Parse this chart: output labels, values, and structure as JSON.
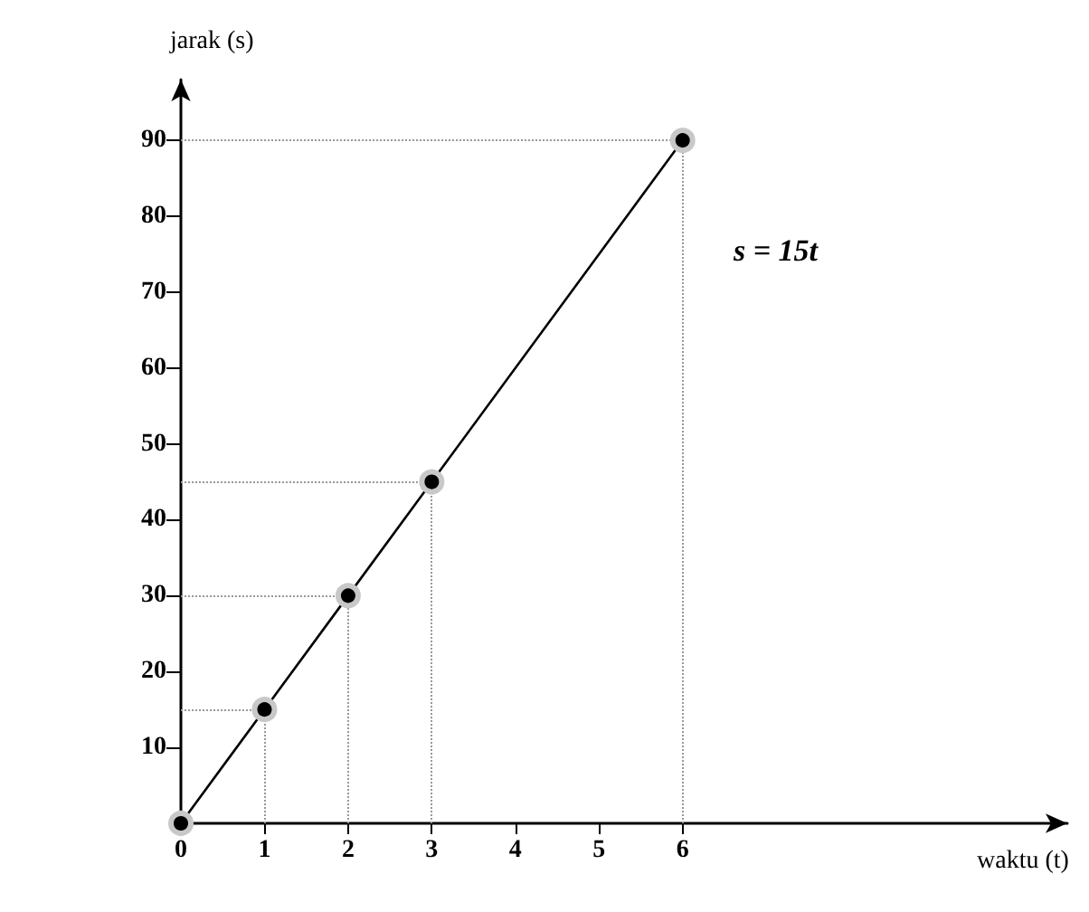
{
  "chart_data": {
    "type": "line",
    "xlabel": "waktu (t)",
    "ylabel": "jarak (s)",
    "x": [
      0,
      1,
      2,
      3,
      6
    ],
    "series": [
      {
        "color": "#000000",
        "values": [
          0,
          15,
          30,
          45,
          90
        ]
      }
    ],
    "xlim": [
      0,
      10.6
    ],
    "xticks": [
      0,
      1,
      2,
      3,
      4,
      5,
      6
    ],
    "ylim": [
      0,
      98
    ],
    "yticks": [
      10,
      20,
      30,
      40,
      50,
      60,
      70,
      80,
      90
    ],
    "ref_lines": [
      {
        "axis": "y",
        "value": 15,
        "color": "#999999",
        "line_style": "dotted"
      },
      {
        "axis": "y",
        "value": 30,
        "color": "#999999",
        "line_style": "dotted"
      },
      {
        "axis": "y",
        "value": 45,
        "color": "#999999",
        "line_style": "dotted"
      },
      {
        "axis": "y",
        "value": 90,
        "color": "#999999",
        "line_style": "dotted"
      },
      {
        "axis": "x",
        "value": 1,
        "color": "#999999",
        "line_style": "dotted"
      },
      {
        "axis": "x",
        "value": 2,
        "color": "#999999",
        "line_style": "dotted"
      },
      {
        "axis": "x",
        "value": 3,
        "color": "#999999",
        "line_style": "dotted"
      },
      {
        "axis": "x",
        "value": 6,
        "color": "#999999",
        "line_style": "dotted"
      }
    ],
    "annotations": [
      "s = 15t"
    ],
    "marker": "circle",
    "line_style": "solid"
  }
}
